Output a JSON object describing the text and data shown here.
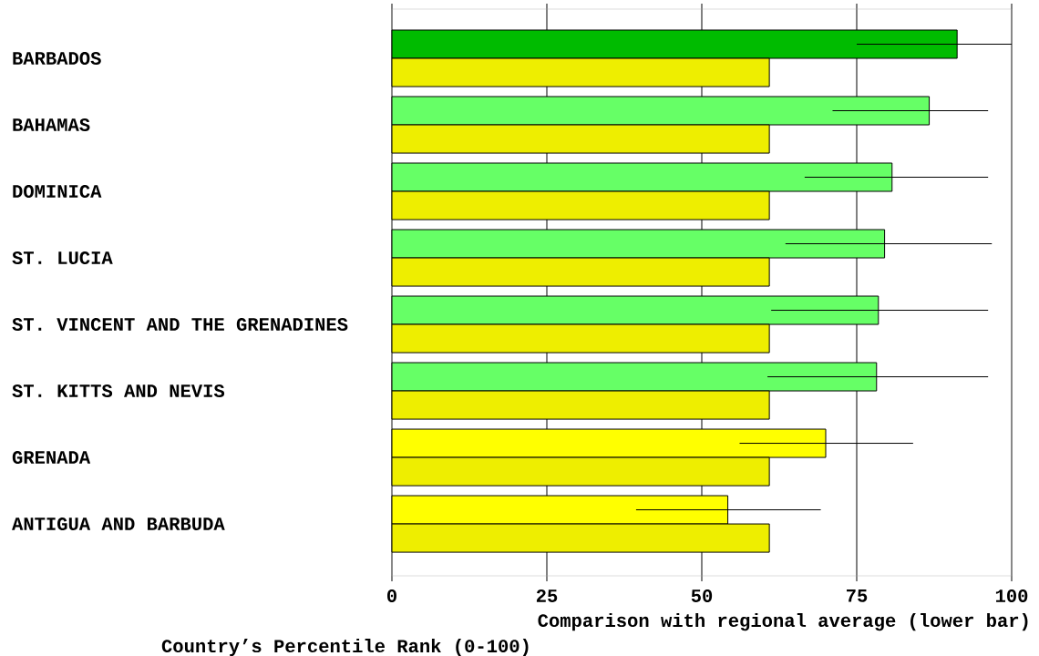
{
  "chart_data": {
    "type": "bar",
    "orientation": "horizontal",
    "categories": [
      "BARBADOS",
      "BAHAMAS",
      "DOMINICA",
      "ST. LUCIA",
      "ST. VINCENT AND THE GRENADINES",
      "ST. KITTS AND NEVIS",
      "GRENADA",
      "ANTIGUA AND BARBUDA"
    ],
    "series": [
      {
        "colors": [
          "#00bb00",
          "#66ff66",
          "#66ff66",
          "#66ff66",
          "#66ff66",
          "#66ff66",
          "#ffff00",
          "#ffff00"
        ],
        "values": [
          91.2,
          86.7,
          80.7,
          79.5,
          78.5,
          78.2,
          70.0,
          54.2
        ],
        "errors": [
          [
            75.0,
            100
          ],
          [
            71.1,
            96.2
          ],
          [
            66.6,
            96.2
          ],
          [
            63.5,
            96.8
          ],
          [
            61.2,
            96.2
          ],
          [
            60.6,
            96.2
          ],
          [
            56.1,
            84.1
          ],
          [
            39.4,
            69.2
          ]
        ]
      },
      {
        "color": "#eeee00",
        "values": [
          60.9,
          60.9,
          60.9,
          60.9,
          60.9,
          60.9,
          60.9,
          60.9
        ]
      }
    ],
    "xlim": [
      0,
      100
    ],
    "xticks": [
      0,
      25,
      50,
      75,
      100
    ],
    "grid": "x",
    "xlabel": "Country’s Percentile Rank (0-100)",
    "annotations": [
      "Comparison with regional average (lower bar)"
    ]
  }
}
